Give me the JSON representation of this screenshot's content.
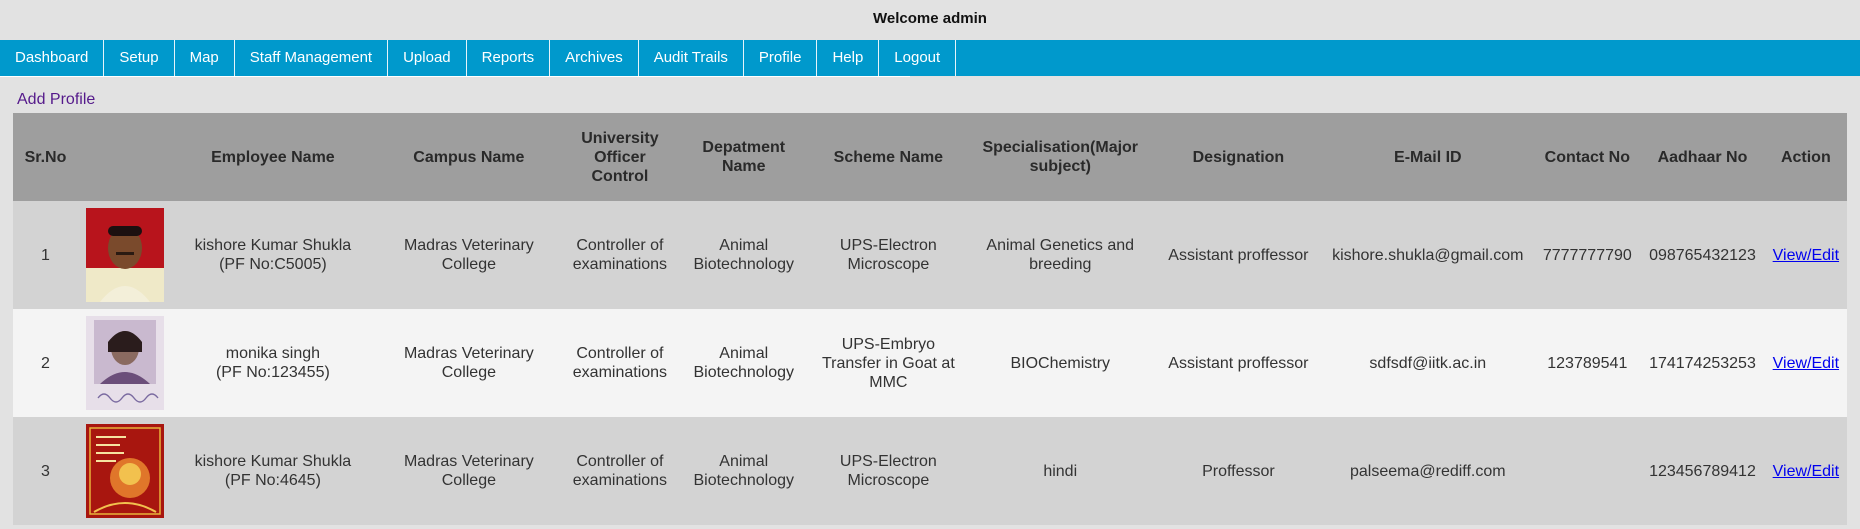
{
  "header": {
    "welcome": "Welcome admin"
  },
  "nav": {
    "items": [
      "Dashboard",
      "Setup",
      "Map",
      "Staff Management",
      "Upload",
      "Reports",
      "Archives",
      "Audit Trails",
      "Profile",
      "Help",
      "Logout"
    ]
  },
  "add_profile": "Add Profile",
  "table": {
    "headers": [
      "Sr.No",
      "",
      "Employee Name",
      "Campus Name",
      "University Officer Control",
      "Depatment Name",
      "Scheme Name",
      "Specialisation(Major subject)",
      "Designation",
      "E-Mail ID",
      "Contact No",
      "Aadhaar No",
      "Action"
    ],
    "rows": [
      {
        "sr": "1",
        "photo": "portrait-photo",
        "name": "kishore Kumar Shukla",
        "pf": "(PF No:C5005)",
        "campus": "Madras Veterinary College",
        "officer": "Controller of examinations",
        "department": "Animal Biotechnology",
        "scheme": "UPS-Electron Microscope",
        "specialisation": "Animal Genetics and breeding",
        "designation": "Assistant proffessor",
        "email": "kishore.shukla@gmail.com",
        "contact": "7777777790",
        "aadhaar": "098765432123",
        "action": "View/Edit"
      },
      {
        "sr": "2",
        "photo": "signed-portrait-photo",
        "name": "monika singh",
        "pf": "(PF No:123455)",
        "campus": "Madras Veterinary College",
        "officer": "Controller of examinations",
        "department": "Animal Biotechnology",
        "scheme": "UPS-Embryo Transfer in Goat at MMC",
        "specialisation": "BIOChemistry",
        "designation": "Assistant proffessor",
        "email": "sdfsdf@iitk.ac.in",
        "contact": "123789541",
        "aadhaar": "174174253253",
        "action": "View/Edit"
      },
      {
        "sr": "3",
        "photo": "greeting-card-image",
        "name": "kishore Kumar Shukla",
        "pf": "(PF No:4645)",
        "campus": "Madras Veterinary College",
        "officer": "Controller of examinations",
        "department": "Animal Biotechnology",
        "scheme": "UPS-Electron Microscope",
        "specialisation": "hindi",
        "designation": "Proffessor",
        "email": "palseema@rediff.com",
        "contact": "",
        "aadhaar": "123456789412",
        "action": "View/Edit"
      }
    ]
  }
}
